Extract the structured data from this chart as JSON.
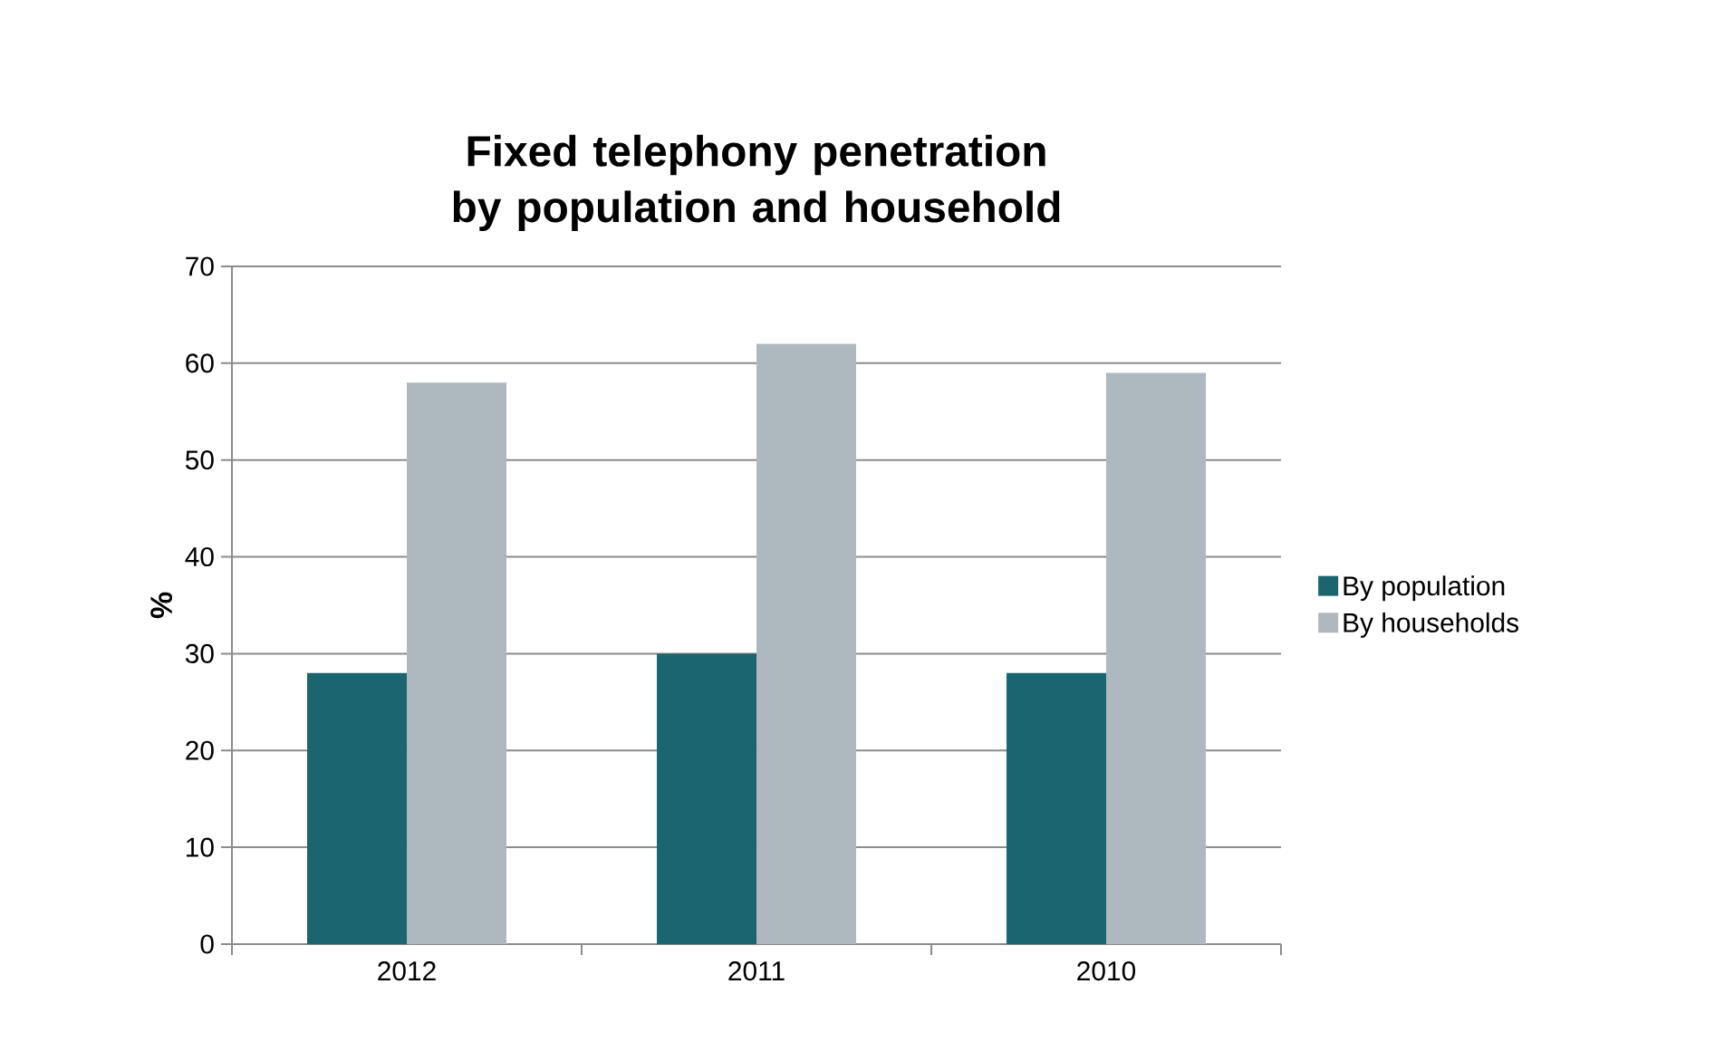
{
  "chart_data": {
    "type": "bar",
    "title": "Fixed telephony penetration by population and household",
    "ylabel": "%",
    "categories": [
      "2012",
      "2011",
      "2010"
    ],
    "series": [
      {
        "name": "By population",
        "color": "#1a6570",
        "values": [
          28,
          30,
          28
        ]
      },
      {
        "name": "By households",
        "color": "#adb8bf",
        "values": [
          58,
          62,
          59
        ]
      }
    ],
    "ylim": [
      0,
      70
    ],
    "yticks": [
      0,
      10,
      20,
      30,
      40,
      50,
      60,
      70
    ],
    "grid": "y",
    "legend": "right"
  }
}
